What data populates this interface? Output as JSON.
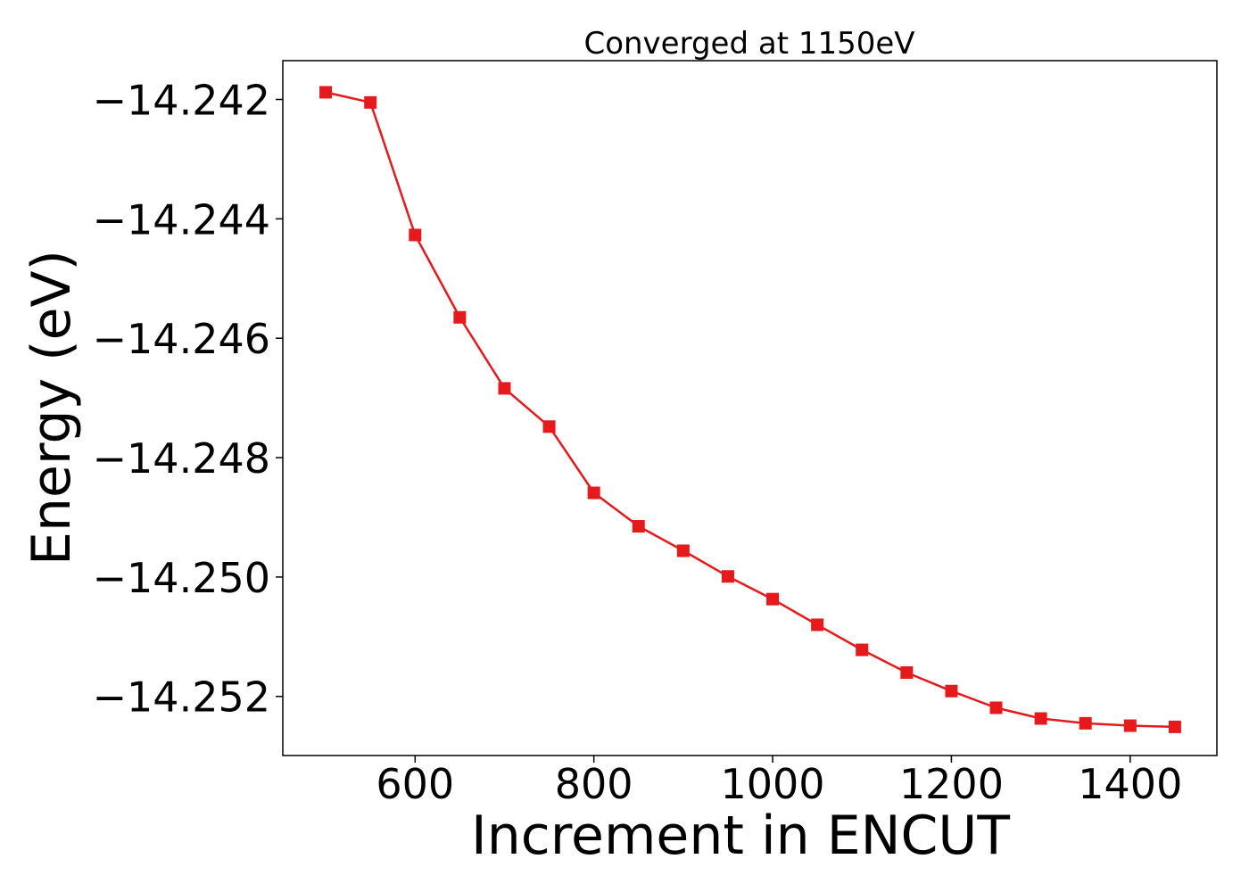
{
  "chart_data": {
    "type": "line",
    "title": "Converged at 1150eV",
    "xlabel": "Increment in ENCUT",
    "ylabel": "Energy (eV)",
    "xlim": [
      452,
      1497
    ],
    "ylim": [
      -14.25299,
      -14.24135
    ],
    "xticks": [
      600,
      800,
      1000,
      1200,
      1400
    ],
    "xtick_labels": [
      "600",
      "800",
      "1000",
      "1200",
      "1400"
    ],
    "yticks": [
      -14.242,
      -14.244,
      -14.246,
      -14.248,
      -14.25,
      -14.252
    ],
    "ytick_labels": [
      "−14.242",
      "−14.244",
      "−14.246",
      "−14.248",
      "−14.250",
      "−14.252"
    ],
    "grid": false,
    "series": [
      {
        "color": "#e41a1c",
        "marker": "square",
        "x": [
          500,
          550,
          600,
          650,
          700,
          750,
          800,
          850,
          900,
          950,
          1000,
          1050,
          1100,
          1150,
          1200,
          1250,
          1300,
          1350,
          1400,
          1450
        ],
        "y": [
          -14.24188,
          -14.24205,
          -14.24427,
          -14.24565,
          -14.24684,
          -14.24748,
          -14.24859,
          -14.24915,
          -14.24956,
          -14.24999,
          -14.25037,
          -14.2508,
          -14.25122,
          -14.2516,
          -14.25191,
          -14.25219,
          -14.25237,
          -14.25245,
          -14.25249,
          -14.25251
        ]
      }
    ]
  }
}
